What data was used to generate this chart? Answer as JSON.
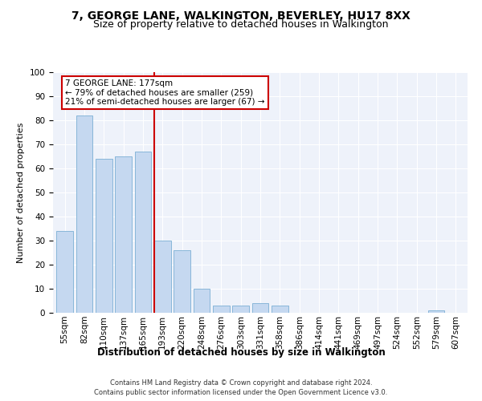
{
  "title1": "7, GEORGE LANE, WALKINGTON, BEVERLEY, HU17 8XX",
  "title2": "Size of property relative to detached houses in Walkington",
  "xlabel": "Distribution of detached houses by size in Walkington",
  "ylabel": "Number of detached properties",
  "bar_labels": [
    "55sqm",
    "82sqm",
    "110sqm",
    "137sqm",
    "165sqm",
    "193sqm",
    "220sqm",
    "248sqm",
    "276sqm",
    "303sqm",
    "331sqm",
    "358sqm",
    "386sqm",
    "414sqm",
    "441sqm",
    "469sqm",
    "497sqm",
    "524sqm",
    "552sqm",
    "579sqm",
    "607sqm"
  ],
  "bar_values": [
    34,
    82,
    64,
    65,
    67,
    30,
    26,
    10,
    3,
    3,
    4,
    3,
    0,
    0,
    0,
    0,
    0,
    0,
    0,
    1,
    0
  ],
  "bar_color": "#c5d8f0",
  "bar_edge_color": "#7bafd4",
  "annotation_text": "7 GEORGE LANE: 177sqm\n← 79% of detached houses are smaller (259)\n21% of semi-detached houses are larger (67) →",
  "annotation_box_color": "#ffffff",
  "annotation_box_edge": "#cc0000",
  "vline_color": "#cc0000",
  "footer1": "Contains HM Land Registry data © Crown copyright and database right 2024.",
  "footer2": "Contains public sector information licensed under the Open Government Licence v3.0.",
  "bg_color": "#eef2fa",
  "ylim": [
    0,
    100
  ],
  "title1_fontsize": 10,
  "title2_fontsize": 9,
  "xlabel_fontsize": 8.5,
  "ylabel_fontsize": 8,
  "tick_fontsize": 7.5,
  "annot_fontsize": 7.5,
  "footer_fontsize": 6
}
